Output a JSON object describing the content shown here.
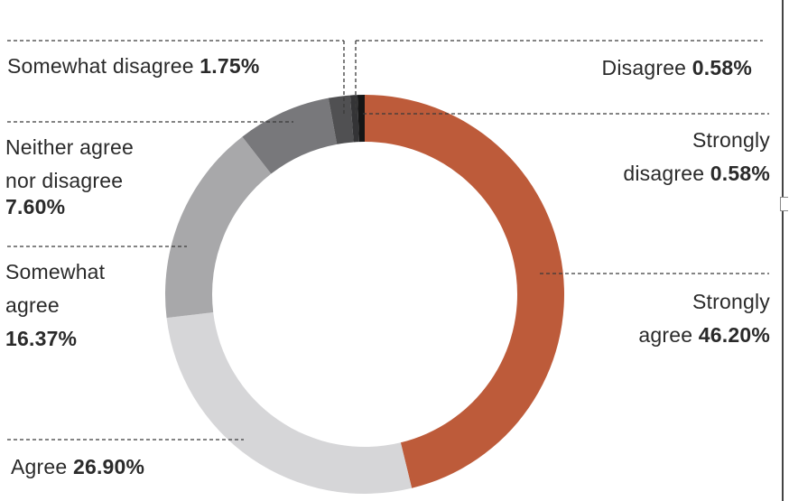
{
  "chart_data": {
    "type": "pie",
    "variant": "donut",
    "slices": [
      {
        "key": "strongly_agree",
        "label_lines": [
          "Strongly",
          "agree"
        ],
        "value": 46.2,
        "value_text": "46.20%",
        "color": "#bd5b3a"
      },
      {
        "key": "agree",
        "label_lines": [
          "Agree"
        ],
        "value": 26.9,
        "value_text": "26.90%",
        "color": "#d6d6d8"
      },
      {
        "key": "somewhat_agree",
        "label_lines": [
          "Somewhat",
          "agree"
        ],
        "value": 16.37,
        "value_text": "16.37%",
        "color": "#a8a8aa"
      },
      {
        "key": "neither",
        "label_lines": [
          "Neither agree",
          "nor disagree"
        ],
        "value": 7.6,
        "value_text": "7.60%",
        "color": "#78787b"
      },
      {
        "key": "somewhat_disagree",
        "label_lines": [
          "Somewhat disagree"
        ],
        "value": 1.75,
        "value_text": "1.75%",
        "color": "#505052"
      },
      {
        "key": "disagree",
        "label_lines": [
          "Disagree"
        ],
        "value": 0.58,
        "value_text": "0.58%",
        "color": "#343436"
      },
      {
        "key": "strongly_disagree",
        "label_lines": [
          "Strongly",
          "disagree"
        ],
        "value": 0.58,
        "value_text": "0.58%",
        "color": "#161616"
      }
    ]
  }
}
